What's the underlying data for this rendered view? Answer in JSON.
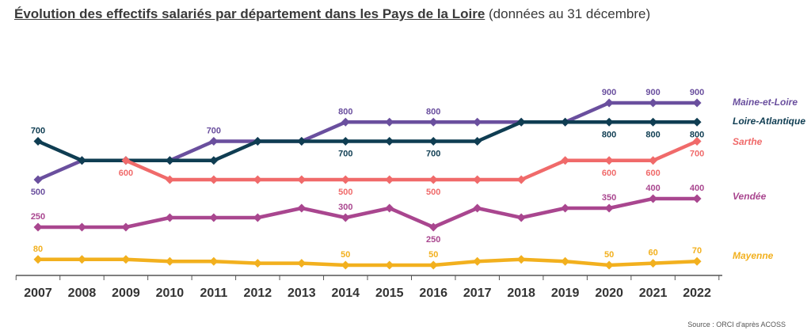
{
  "chart_data": {
    "type": "line",
    "title": "Évolution des effectifs salariés par département dans les Pays de la Loire",
    "subtitle": "(données au 31 décembre)",
    "source": "Source : ORCI d'après ACOSS",
    "xlabel": "",
    "ylabel": "",
    "categories": [
      "2007",
      "2008",
      "2009",
      "2010",
      "2011",
      "2012",
      "2013",
      "2014",
      "2015",
      "2016",
      "2017",
      "2018",
      "2019",
      "2020",
      "2021",
      "2022"
    ],
    "grid": false,
    "legend": "right, at line ends",
    "series": [
      {
        "name": "Maine-et-Loire",
        "color": "#6a4f9e",
        "values": [
          500,
          600,
          600,
          600,
          700,
          700,
          700,
          800,
          800,
          800,
          800,
          800,
          800,
          900,
          900,
          900
        ],
        "labels": [
          {
            "i": 0,
            "text": "500",
            "pos": "below"
          },
          {
            "i": 4,
            "text": "700",
            "pos": "above"
          },
          {
            "i": 7,
            "text": "800",
            "pos": "above"
          },
          {
            "i": 9,
            "text": "800",
            "pos": "above"
          },
          {
            "i": 13,
            "text": "900",
            "pos": "above"
          },
          {
            "i": 14,
            "text": "900",
            "pos": "above"
          },
          {
            "i": 15,
            "text": "900",
            "pos": "above"
          }
        ]
      },
      {
        "name": "Loire-Atlantique",
        "color": "#0f3d52",
        "values": [
          700,
          600,
          600,
          600,
          600,
          700,
          700,
          700,
          700,
          700,
          700,
          800,
          800,
          800,
          800,
          800
        ],
        "labels": [
          {
            "i": 0,
            "text": "700",
            "pos": "above"
          },
          {
            "i": 7,
            "text": "700",
            "pos": "below"
          },
          {
            "i": 9,
            "text": "700",
            "pos": "below"
          },
          {
            "i": 13,
            "text": "800",
            "pos": "below"
          },
          {
            "i": 14,
            "text": "800",
            "pos": "below"
          },
          {
            "i": 15,
            "text": "800",
            "pos": "below"
          }
        ]
      },
      {
        "name": "Sarthe",
        "color": "#f06a6a",
        "values": [
          null,
          null,
          600,
          500,
          500,
          500,
          500,
          500,
          500,
          500,
          500,
          500,
          600,
          600,
          600,
          700
        ],
        "labels": [
          {
            "i": 2,
            "text": "600",
            "pos": "below"
          },
          {
            "i": 7,
            "text": "500",
            "pos": "below"
          },
          {
            "i": 9,
            "text": "500",
            "pos": "below"
          },
          {
            "i": 13,
            "text": "600",
            "pos": "below"
          },
          {
            "i": 14,
            "text": "600",
            "pos": "below"
          },
          {
            "i": 15,
            "text": "700",
            "pos": "below"
          }
        ]
      },
      {
        "name": "Vendée",
        "color": "#a9468f",
        "values": [
          250,
          250,
          250,
          300,
          300,
          300,
          350,
          300,
          350,
          250,
          350,
          300,
          350,
          350,
          400,
          400
        ],
        "labels": [
          {
            "i": 0,
            "text": "250",
            "pos": "above"
          },
          {
            "i": 7,
            "text": "300",
            "pos": "above"
          },
          {
            "i": 9,
            "text": "250",
            "pos": "below"
          },
          {
            "i": 13,
            "text": "350",
            "pos": "above"
          },
          {
            "i": 14,
            "text": "400",
            "pos": "above"
          },
          {
            "i": 15,
            "text": "400",
            "pos": "above"
          }
        ]
      },
      {
        "name": "Mayenne",
        "color": "#f2b01e",
        "values": [
          80,
          80,
          80,
          70,
          70,
          60,
          60,
          50,
          50,
          50,
          70,
          80,
          70,
          50,
          60,
          70
        ],
        "labels": [
          {
            "i": 0,
            "text": "80",
            "pos": "above"
          },
          {
            "i": 7,
            "text": "50",
            "pos": "above"
          },
          {
            "i": 9,
            "text": "50",
            "pos": "above"
          },
          {
            "i": 13,
            "text": "50",
            "pos": "above"
          },
          {
            "i": 14,
            "text": "60",
            "pos": "above"
          },
          {
            "i": 15,
            "text": "70",
            "pos": "above"
          }
        ]
      }
    ]
  }
}
